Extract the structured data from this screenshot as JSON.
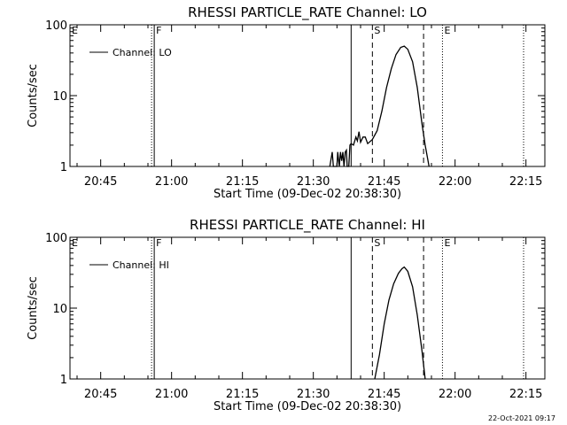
{
  "footer": {
    "timestamp": "22-Oct-2021 09:17"
  },
  "chart_data": [
    {
      "type": "line",
      "title": "RHESSI PARTICLE_RATE Channel: LO",
      "xlabel": "Start Time (09-Dec-02 20:38:30)",
      "ylabel": "Counts/sec",
      "y_scale": "log",
      "ylim": [
        1,
        100
      ],
      "y_ticks": [
        {
          "v": 1,
          "label": "1"
        },
        {
          "v": 10,
          "label": "10"
        },
        {
          "v": 100,
          "label": "100"
        }
      ],
      "xlim": [
        "20:38:30",
        "22:19:00"
      ],
      "x_ticks": [
        "20:45",
        "21:00",
        "21:15",
        "21:30",
        "21:45",
        "22:00",
        "22:15"
      ],
      "legend": {
        "placement": "top-left",
        "entries": [
          "Channel: LO"
        ]
      },
      "markers": [
        {
          "label": "E",
          "time": "20:38:30",
          "style": "none"
        },
        {
          "label": "F",
          "time": "20:56:20",
          "style": "dotted-solid"
        },
        {
          "label": "",
          "time": "21:38:00",
          "style": "solid"
        },
        {
          "label": "S",
          "time": "21:42:30",
          "style": "dashed"
        },
        {
          "label": "",
          "time": "21:53:20",
          "style": "dashed"
        },
        {
          "label": "E",
          "time": "21:57:20",
          "style": "dotted"
        },
        {
          "label": "",
          "time": "22:14:30",
          "style": "dotted"
        }
      ],
      "series": [
        {
          "name": "Channel: LO",
          "points": [
            [
              "21:33:30",
              1
            ],
            [
              "21:34:00",
              1.6
            ],
            [
              "21:34:15",
              1
            ],
            [
              "21:35:00",
              1
            ],
            [
              "21:35:10",
              1.6
            ],
            [
              "21:35:30",
              1
            ],
            [
              "21:35:45",
              1.6
            ],
            [
              "21:36:00",
              1.2
            ],
            [
              "21:36:15",
              1.6
            ],
            [
              "21:36:30",
              1
            ],
            [
              "21:36:45",
              1.6
            ],
            [
              "21:37:00",
              1.7
            ],
            [
              "21:37:10",
              1
            ],
            [
              "21:37:30",
              1
            ],
            [
              "21:37:45",
              2
            ],
            [
              "21:38:00",
              2.1
            ],
            [
              "21:38:30",
              2
            ],
            [
              "21:39:00",
              2.6
            ],
            [
              "21:39:20",
              2.3
            ],
            [
              "21:39:40",
              3.1
            ],
            [
              "21:40:00",
              2.2
            ],
            [
              "21:40:30",
              2.6
            ],
            [
              "21:41:00",
              2.6
            ],
            [
              "21:41:30",
              2.1
            ],
            [
              "21:42:30",
              2.4
            ],
            [
              "21:43:30",
              3.2
            ],
            [
              "21:44:30",
              6
            ],
            [
              "21:45:30",
              13
            ],
            [
              "21:46:30",
              24
            ],
            [
              "21:47:30",
              38
            ],
            [
              "21:48:30",
              48
            ],
            [
              "21:49:15",
              50
            ],
            [
              "21:50:00",
              45
            ],
            [
              "21:51:00",
              30
            ],
            [
              "21:52:00",
              13
            ],
            [
              "21:53:00",
              4
            ],
            [
              "21:53:40",
              2
            ],
            [
              "21:54:30",
              1
            ]
          ]
        }
      ]
    },
    {
      "type": "line",
      "title": "RHESSI PARTICLE_RATE Channel: HI",
      "xlabel": "Start Time (09-Dec-02 20:38:30)",
      "ylabel": "Counts/sec",
      "y_scale": "log",
      "ylim": [
        1,
        100
      ],
      "y_ticks": [
        {
          "v": 1,
          "label": "1"
        },
        {
          "v": 10,
          "label": "10"
        },
        {
          "v": 100,
          "label": "100"
        }
      ],
      "xlim": [
        "20:38:30",
        "22:19:00"
      ],
      "x_ticks": [
        "20:45",
        "21:00",
        "21:15",
        "21:30",
        "21:45",
        "22:00",
        "22:15"
      ],
      "legend": {
        "placement": "top-left",
        "entries": [
          "Channel: HI"
        ]
      },
      "markers": [
        {
          "label": "E",
          "time": "20:38:30",
          "style": "none"
        },
        {
          "label": "F",
          "time": "20:56:20",
          "style": "dotted-solid"
        },
        {
          "label": "",
          "time": "21:38:00",
          "style": "solid"
        },
        {
          "label": "S",
          "time": "21:42:30",
          "style": "dashed"
        },
        {
          "label": "",
          "time": "21:53:20",
          "style": "dashed"
        },
        {
          "label": "E",
          "time": "21:57:20",
          "style": "dotted"
        },
        {
          "label": "",
          "time": "22:14:30",
          "style": "dotted"
        }
      ],
      "series": [
        {
          "name": "Channel: HI",
          "points": [
            [
              "21:43:00",
              1
            ],
            [
              "21:44:00",
              2.2
            ],
            [
              "21:45:00",
              6
            ],
            [
              "21:46:00",
              13
            ],
            [
              "21:47:00",
              22
            ],
            [
              "21:48:00",
              31
            ],
            [
              "21:48:45",
              36
            ],
            [
              "21:49:15",
              38
            ],
            [
              "21:50:00",
              33
            ],
            [
              "21:51:00",
              20
            ],
            [
              "21:52:00",
              8
            ],
            [
              "21:53:00",
              2.5
            ],
            [
              "21:53:40",
              1
            ]
          ]
        }
      ]
    }
  ]
}
